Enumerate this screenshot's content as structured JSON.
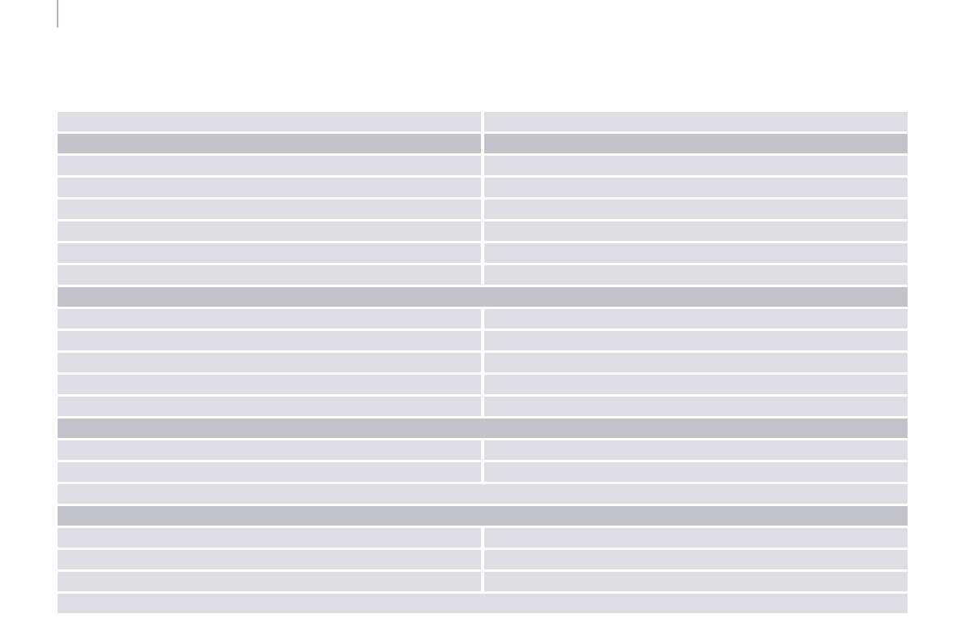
{
  "colors": {
    "header": "#9798ab",
    "section": "#c3c3cc",
    "cell": "#dedde3",
    "margin_bar": "#b4b3c4"
  },
  "table": {
    "rows": [
      {
        "kind": "header",
        "shade": "header",
        "cells": [
          ""
        ]
      },
      {
        "kind": "title",
        "shade": "section",
        "cells": [
          ""
        ]
      },
      {
        "kind": "split",
        "shade": "cell",
        "cells": [
          "",
          ""
        ]
      },
      {
        "kind": "split",
        "shade": "section",
        "cells": [
          "",
          ""
        ]
      },
      {
        "kind": "split",
        "shade": "cell",
        "cells": [
          "",
          ""
        ]
      },
      {
        "kind": "split",
        "shade": "cell",
        "cells": [
          "",
          ""
        ]
      },
      {
        "kind": "split",
        "shade": "cell",
        "cells": [
          "",
          ""
        ]
      },
      {
        "kind": "split",
        "shade": "cell",
        "cells": [
          "",
          ""
        ]
      },
      {
        "kind": "split",
        "shade": "cell",
        "cells": [
          "",
          ""
        ]
      },
      {
        "kind": "split",
        "shade": "cell",
        "cells": [
          "",
          ""
        ]
      },
      {
        "kind": "full",
        "shade": "section",
        "cells": [
          ""
        ]
      },
      {
        "kind": "split",
        "shade": "cell",
        "cells": [
          "",
          ""
        ]
      },
      {
        "kind": "split",
        "shade": "cell",
        "cells": [
          "",
          ""
        ]
      },
      {
        "kind": "split",
        "shade": "cell",
        "cells": [
          "",
          ""
        ]
      },
      {
        "kind": "split",
        "shade": "cell",
        "cells": [
          "",
          ""
        ]
      },
      {
        "kind": "split",
        "shade": "cell",
        "cells": [
          "",
          ""
        ]
      },
      {
        "kind": "full",
        "shade": "section",
        "cells": [
          ""
        ]
      },
      {
        "kind": "split",
        "shade": "cell",
        "cells": [
          "",
          ""
        ]
      },
      {
        "kind": "split",
        "shade": "cell",
        "cells": [
          "",
          ""
        ]
      },
      {
        "kind": "full",
        "shade": "cell",
        "cells": [
          ""
        ]
      },
      {
        "kind": "full",
        "shade": "section",
        "cells": [
          ""
        ]
      },
      {
        "kind": "split",
        "shade": "cell",
        "cells": [
          "",
          ""
        ]
      },
      {
        "kind": "split",
        "shade": "cell",
        "cells": [
          "",
          ""
        ]
      },
      {
        "kind": "split",
        "shade": "cell",
        "cells": [
          "",
          ""
        ]
      },
      {
        "kind": "full",
        "shade": "cell",
        "cells": [
          ""
        ]
      }
    ]
  }
}
